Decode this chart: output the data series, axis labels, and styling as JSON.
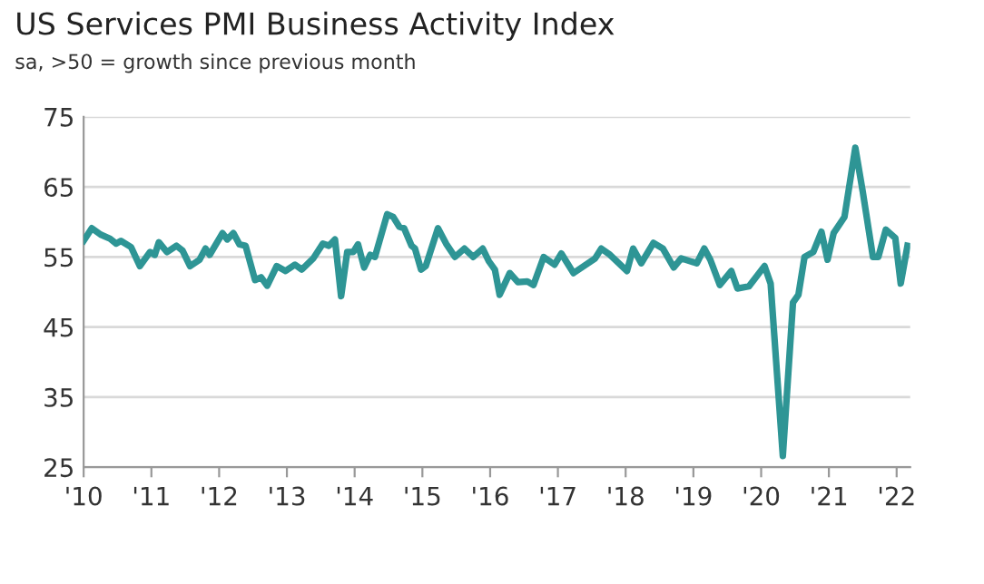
{
  "chart_data": {
    "type": "line",
    "title": "US Services PMI Business Activity Index",
    "subtitle": "sa, >50 = growth since previous month",
    "x": [
      2010.0,
      2010.12,
      2010.25,
      2010.39,
      2010.48,
      2010.55,
      2010.7,
      2010.83,
      2010.98,
      2011.05,
      2011.11,
      2011.23,
      2011.37,
      2011.46,
      2011.57,
      2011.71,
      2011.8,
      2011.86,
      2012.05,
      2012.12,
      2012.21,
      2012.3,
      2012.39,
      2012.53,
      2012.62,
      2012.71,
      2012.85,
      2012.98,
      2013.12,
      2013.22,
      2013.39,
      2013.53,
      2013.62,
      2013.71,
      2013.8,
      2013.89,
      2013.98,
      2014.05,
      2014.14,
      2014.23,
      2014.3,
      2014.48,
      2014.57,
      2014.66,
      2014.73,
      2014.84,
      2014.89,
      2014.98,
      2015.05,
      2015.23,
      2015.35,
      2015.48,
      2015.62,
      2015.75,
      2015.89,
      2015.98,
      2016.07,
      2016.14,
      2016.29,
      2016.41,
      2016.55,
      2016.64,
      2016.79,
      2016.95,
      2017.05,
      2017.23,
      2017.55,
      2017.64,
      2017.77,
      2018.02,
      2018.11,
      2018.23,
      2018.41,
      2018.55,
      2018.71,
      2018.82,
      2019.05,
      2019.16,
      2019.25,
      2019.39,
      2019.56,
      2019.65,
      2019.82,
      2020.05,
      2020.14,
      2020.32,
      2020.47,
      2020.55,
      2020.64,
      2020.77,
      2020.89,
      2020.98,
      2021.07,
      2021.23,
      2021.39,
      2021.5,
      2021.65,
      2021.73,
      2021.84,
      2021.98,
      2022.06,
      2022.16
    ],
    "series": [
      {
        "color": "#2e9595",
        "values": [
          57.3,
          59.1,
          58.2,
          57.6,
          56.9,
          57.3,
          56.4,
          53.7,
          55.7,
          55.3,
          57.1,
          55.7,
          56.6,
          55.9,
          53.7,
          54.6,
          56.2,
          55.3,
          58.4,
          57.5,
          58.4,
          56.8,
          56.6,
          51.7,
          52.1,
          50.9,
          53.7,
          53.0,
          53.9,
          53.2,
          54.8,
          56.9,
          56.6,
          57.5,
          49.4,
          55.7,
          55.7,
          56.8,
          53.5,
          55.3,
          55.0,
          61.1,
          60.7,
          59.3,
          59.1,
          56.6,
          56.2,
          53.2,
          53.7,
          59.1,
          56.9,
          55.0,
          56.2,
          55.0,
          56.2,
          54.4,
          53.2,
          49.6,
          52.7,
          51.4,
          51.5,
          51.0,
          55.0,
          53.9,
          55.5,
          52.7,
          54.8,
          56.2,
          55.3,
          53.0,
          56.2,
          54.1,
          57.0,
          56.2,
          53.5,
          54.8,
          54.1,
          56.2,
          54.6,
          51.0,
          53.0,
          50.5,
          50.8,
          53.7,
          51.2,
          26.6,
          48.5,
          49.6,
          55.0,
          55.7,
          58.6,
          54.6,
          58.4,
          60.7,
          70.6,
          64.3,
          55.0,
          55.0,
          58.9,
          57.7,
          51.2,
          56.6
        ]
      }
    ],
    "xlim": [
      2010,
      2022.2
    ],
    "xticks": [
      {
        "value": 2010,
        "label": "'10"
      },
      {
        "value": 2011,
        "label": "'11"
      },
      {
        "value": 2012,
        "label": "'12"
      },
      {
        "value": 2013,
        "label": "'13"
      },
      {
        "value": 2014,
        "label": "'14"
      },
      {
        "value": 2015,
        "label": "'15"
      },
      {
        "value": 2016,
        "label": "'16"
      },
      {
        "value": 2017,
        "label": "'17"
      },
      {
        "value": 2018,
        "label": "'18"
      },
      {
        "value": 2019,
        "label": "'19"
      },
      {
        "value": 2020,
        "label": "'20"
      },
      {
        "value": 2021,
        "label": "'21"
      },
      {
        "value": 2022,
        "label": "'22"
      }
    ],
    "ylim": [
      25,
      75
    ],
    "yticks": [
      25,
      35,
      45,
      55,
      65,
      75
    ],
    "grid": "y",
    "marker": "none",
    "line_style": "solid"
  }
}
